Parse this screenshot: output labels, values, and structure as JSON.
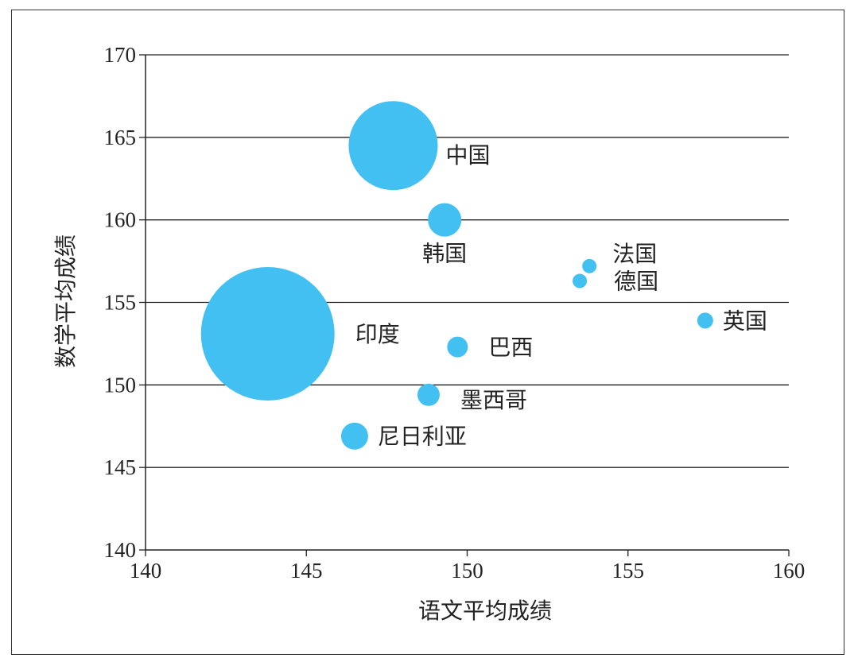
{
  "chart_data": {
    "type": "bubble",
    "xlabel": "语文平均成绩",
    "ylabel": "数学平均成绩",
    "xlim": [
      140,
      160
    ],
    "ylim": [
      140,
      170
    ],
    "xticks": [
      "140",
      "145",
      "150",
      "155",
      "160"
    ],
    "yticks": [
      "140",
      "145",
      "150",
      "155",
      "160",
      "165",
      "170"
    ],
    "grid": "horizontal",
    "color": "#42c0f1",
    "points": [
      {
        "label": "中国",
        "x": 147.7,
        "y": 164.5,
        "size": 56
      },
      {
        "label": "韩国",
        "x": 149.3,
        "y": 160.0,
        "size": 21
      },
      {
        "label": "法国",
        "x": 153.8,
        "y": 157.2,
        "size": 9
      },
      {
        "label": "德国",
        "x": 153.5,
        "y": 156.3,
        "size": 9
      },
      {
        "label": "英国",
        "x": 157.4,
        "y": 153.9,
        "size": 10
      },
      {
        "label": "印度",
        "x": 143.8,
        "y": 153.1,
        "size": 84
      },
      {
        "label": "巴西",
        "x": 149.7,
        "y": 152.3,
        "size": 13
      },
      {
        "label": "墨西哥",
        "x": 148.8,
        "y": 149.4,
        "size": 14
      },
      {
        "label": "尼日利亚",
        "x": 146.5,
        "y": 146.9,
        "size": 17
      }
    ]
  }
}
